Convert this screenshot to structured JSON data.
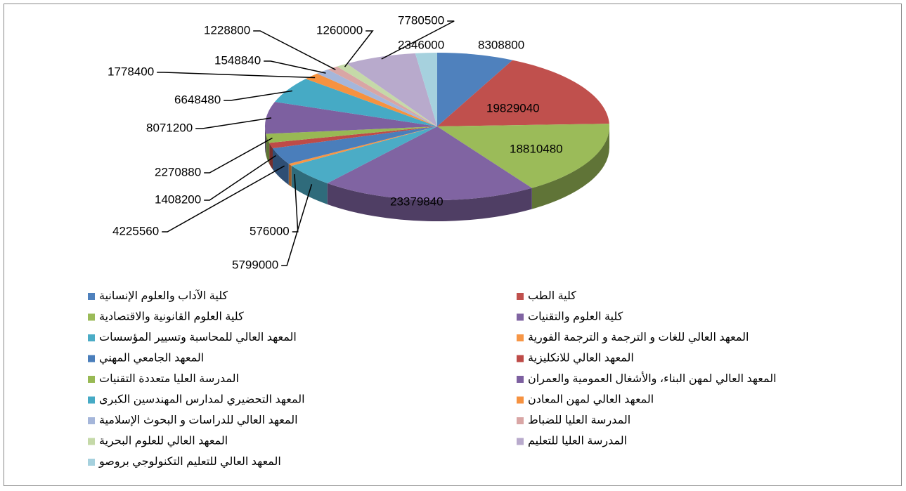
{
  "chart_data": {
    "type": "pie3d",
    "categories": [
      "كلية الآداب والعلوم الإنسانية",
      "كلية الطب",
      "كلية العلوم القانونية والاقتصادية",
      "كلية العلوم والتقنيات",
      "المعهد العالي للمحاسبة وتسيير المؤسسات",
      "المعهد العالي للغات و الترجمة و الترجمة الفورية",
      "المعهد الجامعي المهني",
      "المعهد العالي للانكليزية",
      "المدرسة العليا متعددة التقنيات",
      "المعهد العالي لمهن البناء، والأشغال العمومية والعمران",
      "المعهد التحضيري لمدارس المهندسين الكبرى",
      "المعهد العالي لمهن المعادن",
      "المعهد العالي للدراسات و البحوث الإسلامية",
      "المدرسة العليا للضباط",
      "المعهد العالي للعلوم البحرية",
      "المدرسة العليا للتعليم",
      "المعهد العالي للتعليم التكنولوجي بروصو"
    ],
    "values": [
      8308800,
      19829040,
      18810480,
      23379840,
      5799000,
      576000,
      4225560,
      1408200,
      2270880,
      8071200,
      6648480,
      1778400,
      1548840,
      1228800,
      1260000,
      7780500,
      2346000
    ],
    "colors": [
      "#4F81BD",
      "#C0504D",
      "#9BBB59",
      "#8064A2",
      "#4BACC6",
      "#F79646",
      "#4A7EBB",
      "#BE4B48",
      "#98B954",
      "#7D60A0",
      "#46AAC5",
      "#F69240",
      "#A5B6DA",
      "#D9A6A5",
      "#C5D9A8",
      "#B8AACC",
      "#A6D1DE"
    ]
  }
}
